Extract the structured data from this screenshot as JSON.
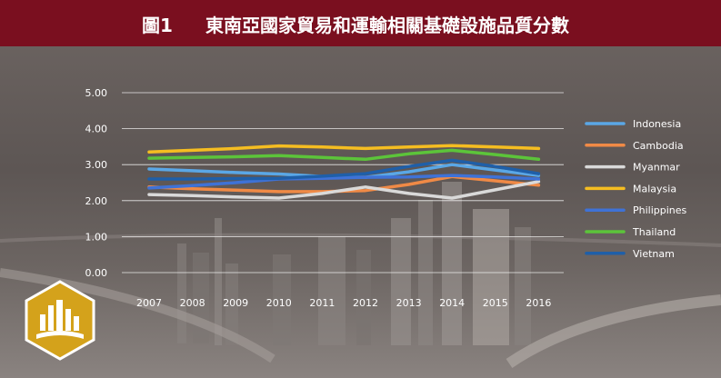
{
  "header": {
    "figure_number": "圖1",
    "title": "東南亞國家貿易和運輸相關基礎設施品質分數"
  },
  "chart_data": {
    "type": "line",
    "title": "東南亞國家貿易和運輸相關基礎設施品質分數",
    "xlabel": "",
    "ylabel": "",
    "x": [
      "2007",
      "2008",
      "2009",
      "2010",
      "2011",
      "2012",
      "2013",
      "2014",
      "2015",
      "2016"
    ],
    "y_ticks": [
      "0.00",
      "1.00",
      "2.00",
      "3.00",
      "4.00",
      "5.00"
    ],
    "ylim": [
      0,
      5
    ],
    "grid": true,
    "legend_position": "right",
    "series": [
      {
        "name": "Indonesia",
        "color": "#5aa7e6",
        "values": [
          2.88,
          2.83,
          2.78,
          2.74,
          2.67,
          2.65,
          2.8,
          3.0,
          2.85,
          2.7
        ]
      },
      {
        "name": "Cambodia",
        "color": "#f08a46",
        "values": [
          2.38,
          2.33,
          2.29,
          2.25,
          2.25,
          2.28,
          2.45,
          2.67,
          2.55,
          2.43
        ]
      },
      {
        "name": "Myanmar",
        "color": "#d9d9d9",
        "values": [
          2.17,
          2.14,
          2.1,
          2.07,
          2.2,
          2.38,
          2.2,
          2.07,
          2.3,
          2.53
        ]
      },
      {
        "name": "Malaysia",
        "color": "#f5bd21",
        "values": [
          3.35,
          3.4,
          3.45,
          3.52,
          3.49,
          3.45,
          3.49,
          3.53,
          3.49,
          3.45
        ]
      },
      {
        "name": "Philippines",
        "color": "#3f72d6",
        "values": [
          2.35,
          2.42,
          2.5,
          2.6,
          2.62,
          2.65,
          2.66,
          2.7,
          2.66,
          2.6
        ]
      },
      {
        "name": "Thailand",
        "color": "#5cc43a",
        "values": [
          3.18,
          3.2,
          3.22,
          3.25,
          3.2,
          3.15,
          3.3,
          3.4,
          3.28,
          3.15
        ]
      },
      {
        "name": "Vietnam",
        "color": "#1f5fa8",
        "values": [
          2.6,
          2.6,
          2.61,
          2.62,
          2.68,
          2.75,
          2.95,
          3.12,
          2.95,
          2.75
        ]
      }
    ]
  }
}
